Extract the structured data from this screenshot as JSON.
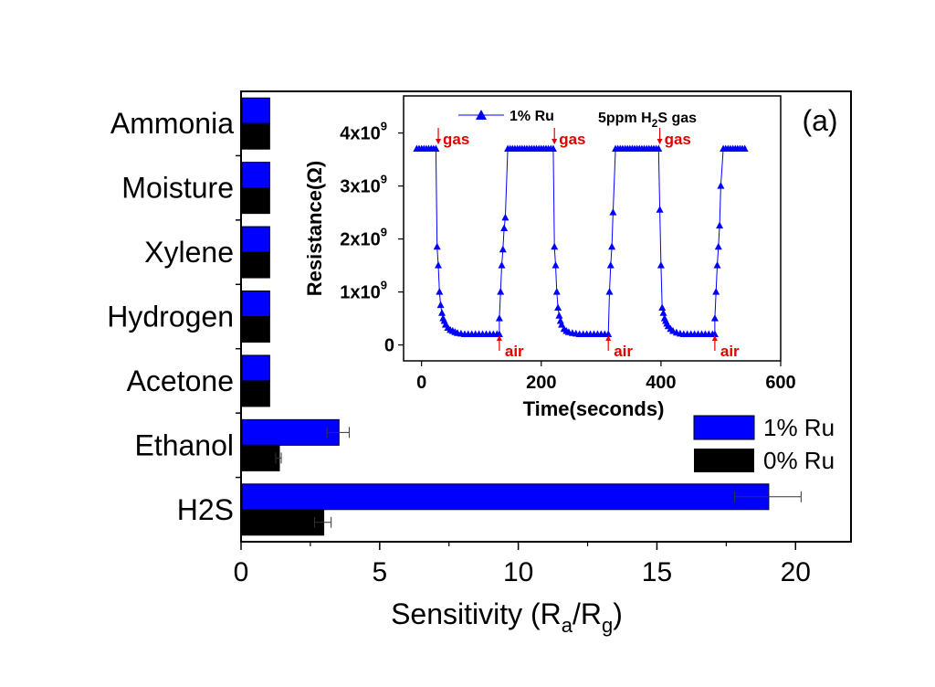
{
  "chart_data": [
    {
      "type": "bar",
      "orientation": "horizontal",
      "panel_label": "(a)",
      "xlabel": "Sensitivity (R",
      "xlabel_sub_a": "a",
      "xlabel_mid": "/R",
      "xlabel_sub_g": "g",
      "xlabel_end": ")",
      "xlim": [
        0,
        22
      ],
      "xticks": [
        "0",
        "5",
        "10",
        "15",
        "20"
      ],
      "categories": [
        "Ammonia",
        "Moisture",
        "Xylene",
        "Hydrogen",
        "Acetone",
        "Ethanol",
        "H2S"
      ],
      "series": [
        {
          "name": "1% Ru",
          "color": "#0000FF",
          "values": [
            1.0,
            1.0,
            1.0,
            1.0,
            1.0,
            3.5,
            19.0
          ],
          "errors": [
            0,
            0,
            0,
            0,
            0,
            0.4,
            1.2
          ]
        },
        {
          "name": "0% Ru",
          "color": "#000000",
          "values": [
            1.0,
            1.0,
            1.0,
            1.0,
            1.0,
            1.35,
            2.95
          ],
          "errors": [
            0,
            0,
            0,
            0,
            0,
            0.1,
            0.3
          ]
        }
      ],
      "legend_position": "lower-right"
    },
    {
      "type": "line",
      "inset": true,
      "xlabel": "Time(seconds)",
      "ylabel": "Resistance(Ω)",
      "xlim": [
        -30,
        600
      ],
      "ylim": [
        -0.3,
        4.7
      ],
      "y_unit": "x10^9",
      "xticks": [
        "0",
        "200",
        "400",
        "600"
      ],
      "yticks": [
        {
          "value": 0,
          "base": "0",
          "exp": ""
        },
        {
          "value": 1,
          "base": "1x10",
          "exp": "9"
        },
        {
          "value": 2,
          "base": "2x10",
          "exp": "9"
        },
        {
          "value": 3,
          "base": "3x10",
          "exp": "9"
        },
        {
          "value": 4,
          "base": "4x10",
          "exp": "9"
        }
      ],
      "legend": "1% Ru",
      "annotation_main": "5ppm H",
      "annotation_sub": "2",
      "annotation_end": "S gas",
      "series": [
        {
          "name": "1% Ru",
          "color": "#0000FF",
          "x": [
            -8,
            -4,
            0,
            4,
            8,
            12,
            16,
            20,
            24,
            26,
            28,
            30,
            32,
            34,
            36,
            38,
            40,
            44,
            48,
            52,
            56,
            60,
            66,
            72,
            78,
            84,
            90,
            96,
            102,
            108,
            114,
            120,
            126,
            130,
            130,
            132,
            134,
            136,
            138,
            140,
            144,
            148,
            152,
            156,
            160,
            164,
            168,
            172,
            176,
            180,
            184,
            188,
            192,
            196,
            200,
            204,
            208,
            212,
            216,
            220,
            222,
            224,
            226,
            228,
            230,
            232,
            234,
            238,
            242,
            246,
            252,
            258,
            264,
            270,
            276,
            282,
            288,
            294,
            300,
            306,
            312,
            314,
            316,
            318,
            320,
            324,
            328,
            332,
            336,
            340,
            344,
            348,
            352,
            356,
            360,
            364,
            368,
            372,
            376,
            380,
            384,
            388,
            392,
            396,
            398,
            400,
            402,
            404,
            406,
            408,
            410,
            412,
            416,
            420,
            426,
            432,
            438,
            444,
            450,
            456,
            462,
            468,
            474,
            480,
            486,
            490,
            490,
            492,
            494,
            496,
            498,
            500,
            504,
            508,
            512,
            516,
            520,
            524,
            528,
            532,
            536,
            540
          ],
          "y": [
            3.7,
            3.7,
            3.7,
            3.7,
            3.7,
            3.7,
            3.7,
            3.7,
            3.7,
            1.85,
            1.5,
            1.0,
            0.75,
            0.6,
            0.5,
            0.45,
            0.38,
            0.32,
            0.28,
            0.26,
            0.24,
            0.22,
            0.21,
            0.2,
            0.2,
            0.2,
            0.2,
            0.2,
            0.2,
            0.2,
            0.2,
            0.2,
            0.2,
            0.2,
            0.5,
            1.0,
            1.5,
            1.8,
            2.2,
            2.4,
            3.7,
            3.7,
            3.7,
            3.7,
            3.7,
            3.7,
            3.7,
            3.7,
            3.7,
            3.7,
            3.7,
            3.7,
            3.7,
            3.7,
            3.7,
            3.7,
            3.7,
            3.7,
            3.7,
            3.7,
            1.85,
            1.5,
            1.0,
            0.7,
            0.55,
            0.45,
            0.38,
            0.3,
            0.26,
            0.24,
            0.22,
            0.21,
            0.2,
            0.2,
            0.2,
            0.2,
            0.2,
            0.2,
            0.2,
            0.2,
            0.2,
            1.0,
            1.5,
            1.85,
            2.5,
            3.7,
            3.7,
            3.7,
            3.7,
            3.7,
            3.7,
            3.7,
            3.7,
            3.7,
            3.7,
            3.7,
            3.7,
            3.7,
            3.7,
            3.7,
            3.7,
            3.7,
            3.7,
            3.7,
            2.55,
            1.5,
            0.7,
            0.6,
            0.5,
            0.45,
            0.4,
            0.35,
            0.3,
            0.26,
            0.23,
            0.21,
            0.2,
            0.2,
            0.2,
            0.2,
            0.2,
            0.2,
            0.2,
            0.2,
            0.2,
            0.2,
            0.5,
            1.0,
            1.5,
            1.85,
            2.25,
            3.0,
            3.7,
            3.7,
            3.7,
            3.7,
            3.7,
            3.7,
            3.7,
            3.7,
            3.7,
            3.7
          ]
        }
      ],
      "events": [
        {
          "label": "gas",
          "x": 28,
          "type": "gas"
        },
        {
          "label": "gas",
          "x": 222,
          "type": "gas"
        },
        {
          "label": "gas",
          "x": 398,
          "type": "gas"
        },
        {
          "label": "air",
          "x": 130,
          "type": "air"
        },
        {
          "label": "air",
          "x": 312,
          "type": "air"
        },
        {
          "label": "air",
          "x": 490,
          "type": "air"
        }
      ]
    }
  ]
}
